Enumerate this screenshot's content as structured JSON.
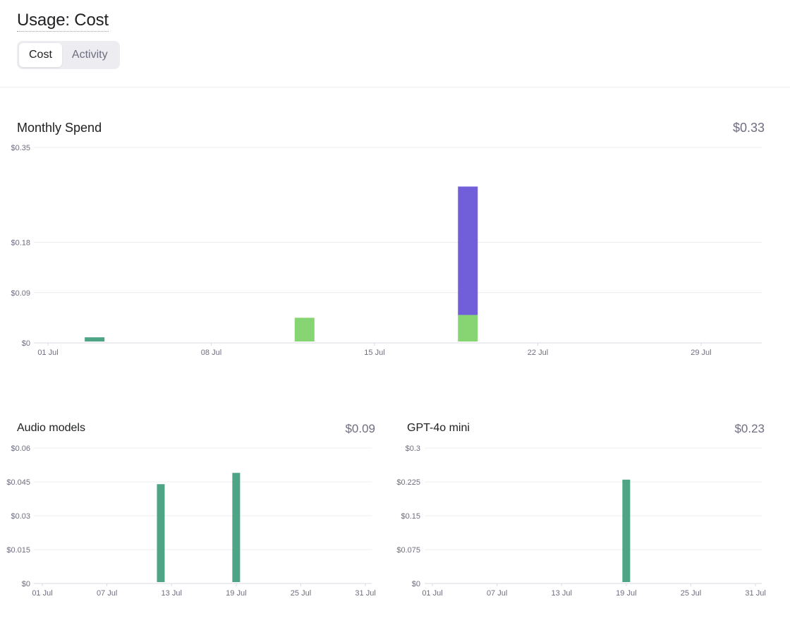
{
  "header": {
    "title": "Usage: Cost"
  },
  "tabs": [
    {
      "label": "Cost",
      "active": true
    },
    {
      "label": "Activity",
      "active": false
    }
  ],
  "colors": {
    "teal": "#4ea585",
    "lightgreen": "#86d472",
    "purple": "#715fd9",
    "grid": "#ececf1",
    "axis": "#d9d9e3"
  },
  "monthly": {
    "title": "Monthly Spend",
    "total": "$0.33",
    "chart_data": {
      "type": "bar",
      "stacked": true,
      "x_unit": "day of July",
      "x_ticks": [
        {
          "day": 1,
          "label": "01 Jul"
        },
        {
          "day": 8,
          "label": "08 Jul"
        },
        {
          "day": 15,
          "label": "15 Jul"
        },
        {
          "day": 22,
          "label": "22 Jul"
        },
        {
          "day": 29,
          "label": "29 Jul"
        }
      ],
      "y_ticks": [
        {
          "value": 0,
          "label": "$0"
        },
        {
          "value": 0.09,
          "label": "$0.09"
        },
        {
          "value": 0.18,
          "label": "$0.18"
        },
        {
          "value": 0.35,
          "label": "$0.35"
        }
      ],
      "ylim": [
        0,
        0.35
      ],
      "bars": [
        {
          "day": 3,
          "segments": [
            {
              "color": "#4ea585",
              "value": 0.01
            }
          ]
        },
        {
          "day": 12,
          "segments": [
            {
              "color": "#86d472",
              "value": 0.045
            }
          ]
        },
        {
          "day": 19,
          "segments": [
            {
              "color": "#86d472",
              "value": 0.05
            },
            {
              "color": "#715fd9",
              "value": 0.23
            }
          ]
        }
      ]
    }
  },
  "audio": {
    "title": "Audio models",
    "total": "$0.09",
    "chart_data": {
      "type": "bar",
      "x_unit": "day of July",
      "x_ticks": [
        {
          "day": 1,
          "label": "01 Jul"
        },
        {
          "day": 7,
          "label": "07 Jul"
        },
        {
          "day": 13,
          "label": "13 Jul"
        },
        {
          "day": 19,
          "label": "19 Jul"
        },
        {
          "day": 25,
          "label": "25 Jul"
        },
        {
          "day": 31,
          "label": "31 Jul"
        }
      ],
      "y_ticks": [
        {
          "value": 0,
          "label": "$0"
        },
        {
          "value": 0.015,
          "label": "$0.015"
        },
        {
          "value": 0.03,
          "label": "$0.03"
        },
        {
          "value": 0.045,
          "label": "$0.045"
        },
        {
          "value": 0.06,
          "label": "$0.06"
        }
      ],
      "ylim": [
        0,
        0.06
      ],
      "bars": [
        {
          "day": 12,
          "segments": [
            {
              "color": "#4ea585",
              "value": 0.044
            }
          ]
        },
        {
          "day": 19,
          "segments": [
            {
              "color": "#4ea585",
              "value": 0.049
            }
          ]
        }
      ]
    }
  },
  "mini": {
    "title": "GPT-4o mini",
    "total": "$0.23",
    "chart_data": {
      "type": "bar",
      "x_unit": "day of July",
      "x_ticks": [
        {
          "day": 1,
          "label": "01 Jul"
        },
        {
          "day": 7,
          "label": "07 Jul"
        },
        {
          "day": 13,
          "label": "13 Jul"
        },
        {
          "day": 19,
          "label": "19 Jul"
        },
        {
          "day": 25,
          "label": "25 Jul"
        },
        {
          "day": 31,
          "label": "31 Jul"
        }
      ],
      "y_ticks": [
        {
          "value": 0,
          "label": "$0"
        },
        {
          "value": 0.075,
          "label": "$0.075"
        },
        {
          "value": 0.15,
          "label": "$0.15"
        },
        {
          "value": 0.225,
          "label": "$0.225"
        },
        {
          "value": 0.3,
          "label": "$0.3"
        }
      ],
      "ylim": [
        0,
        0.3
      ],
      "bars": [
        {
          "day": 19,
          "segments": [
            {
              "color": "#4ea585",
              "value": 0.23
            }
          ]
        }
      ]
    }
  }
}
